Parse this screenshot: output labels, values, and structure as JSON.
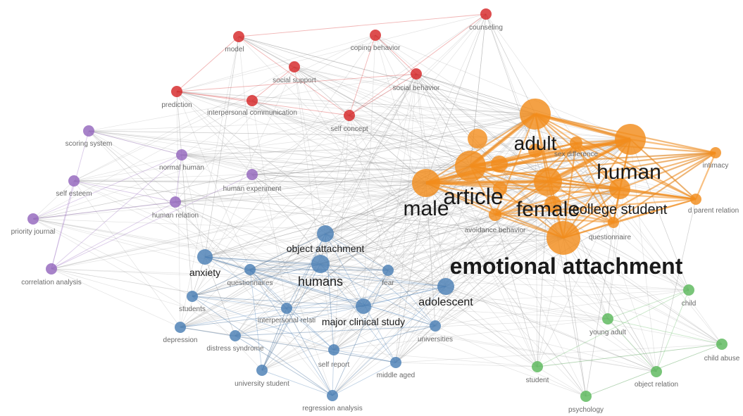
{
  "clusters": {
    "red": "#d62728",
    "purple": "#9467bd",
    "blue": "#4a7fb5",
    "orange": "#f28c1c",
    "green": "#5cb85c"
  },
  "label_color": "#6b6b6b",
  "edge_color": "#9a9a9a",
  "nodes": [
    {
      "id": "counseling",
      "label": "counseling",
      "cluster": "red",
      "weight": 1
    },
    {
      "id": "model",
      "label": "model",
      "cluster": "red",
      "weight": 1
    },
    {
      "id": "coping-behavior",
      "label": "coping behavior",
      "cluster": "red",
      "weight": 1
    },
    {
      "id": "social-support",
      "label": "social support",
      "cluster": "red",
      "weight": 1
    },
    {
      "id": "social-behavior",
      "label": "social behavior",
      "cluster": "red",
      "weight": 1
    },
    {
      "id": "prediction",
      "label": "prediction",
      "cluster": "red",
      "weight": 1
    },
    {
      "id": "interpersonal-communication",
      "label": "interpersonal communication",
      "cluster": "red",
      "weight": 1
    },
    {
      "id": "self-concept",
      "label": "self concept",
      "cluster": "red",
      "weight": 1
    },
    {
      "id": "scoring-system",
      "label": "scoring system",
      "cluster": "purple",
      "weight": 1
    },
    {
      "id": "normal-human",
      "label": "normal human",
      "cluster": "purple",
      "weight": 1
    },
    {
      "id": "self-esteem",
      "label": "self esteem",
      "cluster": "purple",
      "weight": 1
    },
    {
      "id": "human-experiment",
      "label": "human experiment",
      "cluster": "purple",
      "weight": 1
    },
    {
      "id": "human-relation",
      "label": "human relation",
      "cluster": "purple",
      "weight": 1
    },
    {
      "id": "priority-journal",
      "label": "priority journal",
      "cluster": "purple",
      "weight": 1
    },
    {
      "id": "correlation-analysis",
      "label": "correlation analysis",
      "cluster": "purple",
      "weight": 1
    },
    {
      "id": "object-attachment",
      "label": "object attachment",
      "cluster": "blue",
      "weight": 3
    },
    {
      "id": "anxiety",
      "label": "anxiety",
      "cluster": "blue",
      "weight": 3
    },
    {
      "id": "humans",
      "label": "humans",
      "cluster": "blue",
      "weight": 4
    },
    {
      "id": "questionnaires",
      "label": "questionnaires",
      "cluster": "blue",
      "weight": 1
    },
    {
      "id": "fear",
      "label": "fear",
      "cluster": "blue",
      "weight": 1
    },
    {
      "id": "adolescent",
      "label": "adolescent",
      "cluster": "blue",
      "weight": 3
    },
    {
      "id": "students",
      "label": "students",
      "cluster": "blue",
      "weight": 1
    },
    {
      "id": "interpersonal-relations",
      "label": "interpersonal relati",
      "cluster": "blue",
      "weight": 1
    },
    {
      "id": "major-clinical-study",
      "label": "major clinical study",
      "cluster": "blue",
      "weight": 2
    },
    {
      "id": "depression",
      "label": "depression",
      "cluster": "blue",
      "weight": 1
    },
    {
      "id": "distress-syndrome",
      "label": "distress syndrome",
      "cluster": "blue",
      "weight": 1
    },
    {
      "id": "universities",
      "label": "universities",
      "cluster": "blue",
      "weight": 1
    },
    {
      "id": "self-report",
      "label": "self report",
      "cluster": "blue",
      "weight": 1
    },
    {
      "id": "middle-aged",
      "label": "middle aged",
      "cluster": "blue",
      "weight": 1
    },
    {
      "id": "university-student",
      "label": "university student",
      "cluster": "blue",
      "weight": 1
    },
    {
      "id": "regression-analysis",
      "label": "regression analysis",
      "cluster": "blue",
      "weight": 1
    },
    {
      "id": "adult",
      "label": "adult",
      "cluster": "orange",
      "weight": 4
    },
    {
      "id": "sex-difference",
      "label": "sex difference",
      "cluster": "orange",
      "weight": 1
    },
    {
      "id": "human",
      "label": "human",
      "cluster": "orange",
      "weight": 5
    },
    {
      "id": "intimacy",
      "label": "intimacy",
      "cluster": "orange",
      "weight": 1
    },
    {
      "id": "article",
      "label": "article",
      "cluster": "orange",
      "weight": 5
    },
    {
      "id": "male",
      "label": "male",
      "cluster": "orange",
      "weight": 5
    },
    {
      "id": "female",
      "label": "female",
      "cluster": "orange",
      "weight": 5
    },
    {
      "id": "college-student",
      "label": "college student",
      "cluster": "orange",
      "weight": 3
    },
    {
      "id": "child-parent-relation",
      "label": "d parent relation",
      "cluster": "orange",
      "weight": 1
    },
    {
      "id": "avoidance-behavior",
      "label": "avoidance behavior",
      "cluster": "orange",
      "weight": 1
    },
    {
      "id": "questionnaire",
      "label": "questionnaire",
      "cluster": "orange",
      "weight": 1
    },
    {
      "id": "emotional-attachment",
      "label": "emotional attachment",
      "cluster": "orange",
      "weight": 6
    },
    {
      "id": "child",
      "label": "child",
      "cluster": "green",
      "weight": 1
    },
    {
      "id": "young-adult",
      "label": "young adult",
      "cluster": "green",
      "weight": 1
    },
    {
      "id": "child-abuse",
      "label": "child abuse",
      "cluster": "green",
      "weight": 1
    },
    {
      "id": "student",
      "label": "student",
      "cluster": "green",
      "weight": 1
    },
    {
      "id": "object-relation",
      "label": "object relation",
      "cluster": "green",
      "weight": 1
    },
    {
      "id": "psychology",
      "label": "psychology",
      "cluster": "green",
      "weight": 1
    }
  ]
}
